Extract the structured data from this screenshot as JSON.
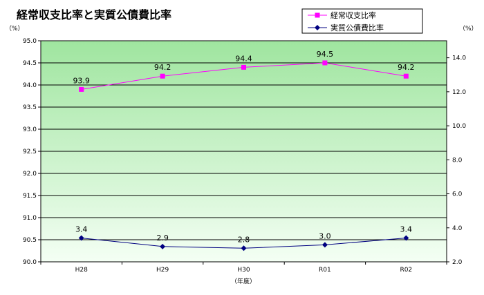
{
  "chart_data": {
    "type": "line",
    "title": "経常収支比率と実質公債費比率",
    "categories": [
      "H28",
      "H29",
      "H30",
      "R01",
      "R02"
    ],
    "xlabel": "（年度）",
    "y_left": {
      "unit": "（%）",
      "min": 90.0,
      "max": 95.0,
      "step": 0.5,
      "ticks": [
        "90.0",
        "90.5",
        "91.0",
        "91.5",
        "92.0",
        "92.5",
        "93.0",
        "93.5",
        "94.0",
        "94.5",
        "95.0"
      ]
    },
    "y_right": {
      "unit": "（%）",
      "min": 2.0,
      "max": 15.0,
      "step": 2.0,
      "ticks": [
        "2.0",
        "4.0",
        "6.0",
        "8.0",
        "10.0",
        "12.0",
        "14.0"
      ]
    },
    "series": [
      {
        "name": "経常収支比率",
        "axis": "left",
        "color": "#ff00ff",
        "marker": "square",
        "values": [
          93.9,
          94.2,
          94.4,
          94.5,
          94.2
        ],
        "labels": [
          "93.9",
          "94.2",
          "94.4",
          "94.5",
          "94.2"
        ]
      },
      {
        "name": "実質公債費比率",
        "axis": "right",
        "color": "#000080",
        "marker": "diamond",
        "values": [
          3.4,
          2.9,
          2.8,
          3.0,
          3.4
        ],
        "labels": [
          "3.4",
          "2.9",
          "2.8",
          "3.0",
          "3.4"
        ]
      }
    ],
    "legend_position": "top-right",
    "grid": true,
    "background": "gradient-green"
  }
}
